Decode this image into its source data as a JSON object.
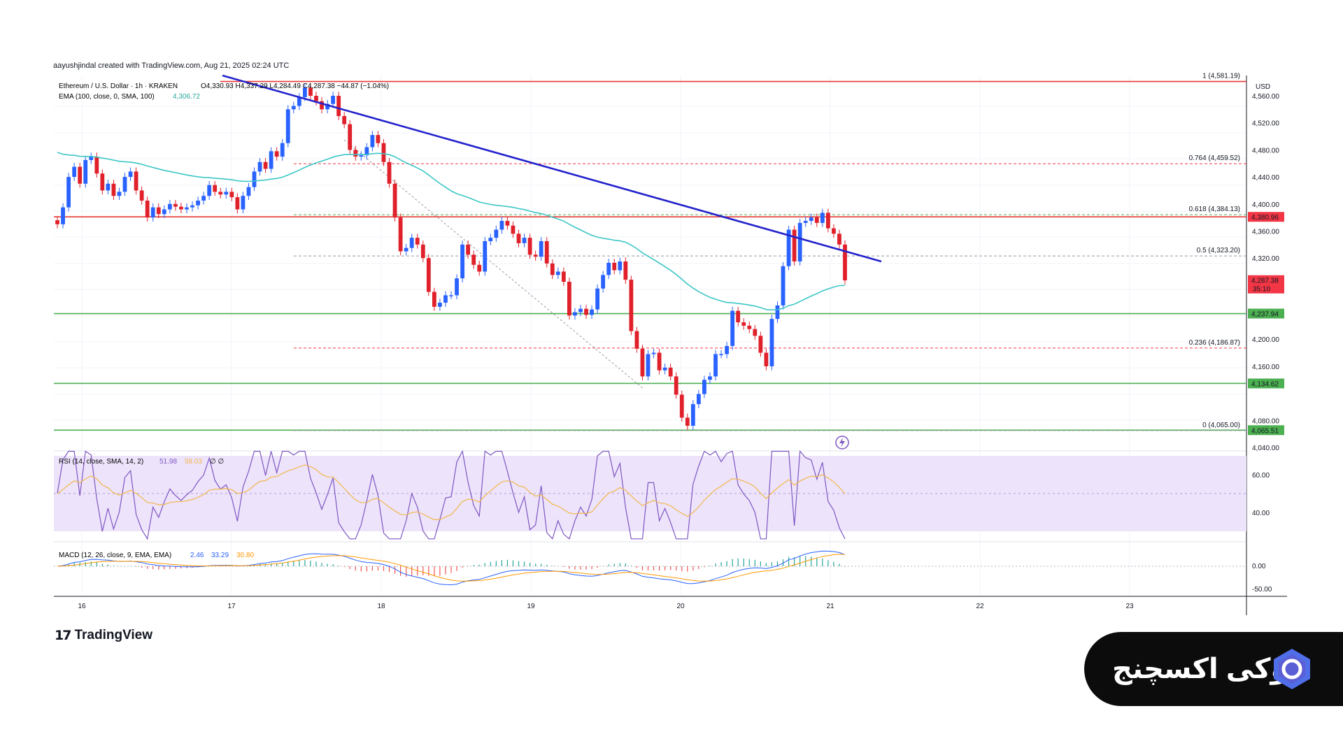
{
  "credit": "aayushjindal created with TradingView.com, Aug 21, 2025 02:24 UTC",
  "header": {
    "symbol": "Ethereum / U.S. Dollar · 1h · KRAKEN",
    "ohlc": "O4,330.93  H4,337.29  L4,284.49  C4,287.38  −44.87 (−1.04%)",
    "ema_label": "EMA (100, close, 0, SMA, 100)",
    "ema_value": "4,306.72"
  },
  "price_axis": {
    "currency": "USD",
    "ticks": [
      "4,560.00",
      "4,520.00",
      "4,480.00",
      "4,440.00",
      "4,400.00",
      "4,360.00",
      "4,320.00",
      "4,200.00",
      "4,160.00",
      "4,080.00",
      "4,040.00"
    ]
  },
  "x_axis": {
    "ticks": [
      "16",
      "17",
      "18",
      "19",
      "20",
      "21",
      "22",
      "23"
    ]
  },
  "price_labels": [
    {
      "text": "4,380.96",
      "color": "#f23645"
    },
    {
      "text": "4,287.38",
      "sub": "35:10",
      "color": "#f23645"
    },
    {
      "text": "4,237.94",
      "color": "#4caf50"
    },
    {
      "text": "4,134.62",
      "color": "#4caf50"
    },
    {
      "text": "4,065.51",
      "color": "#4caf50"
    }
  ],
  "fib_labels": [
    {
      "text": "1 (4,581.19)",
      "color": "#5b9cf6"
    },
    {
      "text": "0.764 (4,459.52)",
      "color": "#f23645"
    },
    {
      "text": "0.618 (4,384.13)",
      "color": "#4caf50"
    },
    {
      "text": "0.5 (4,323.20)",
      "color": "#131722"
    },
    {
      "text": "0.236 (4,186.87)",
      "color": "#f23645"
    },
    {
      "text": "0 (4,065.00)",
      "color": "#787b86"
    }
  ],
  "rsi": {
    "label": "RSI (14, close, SMA, 14, 2)",
    "value": "51.98",
    "value2": "58.03",
    "extra": "∅ ∅",
    "ticks": [
      "60.00",
      "40.00"
    ]
  },
  "macd": {
    "label": "MACD (12, 26, close, 9, EMA, EMA)",
    "v1": "2.46",
    "v2": "33.29",
    "v3": "30.80",
    "ticks": [
      "0.00",
      "-50.00"
    ]
  },
  "colors": {
    "up": "#2962ff",
    "down": "#e0202a",
    "ema": "#3dc6c6",
    "trend": "#2323cc",
    "resistance": "#e53935",
    "support": "#4caf50",
    "rsi_bg": "#ede3fb",
    "rsi_line": "#7e57c2"
  },
  "chart_data": {
    "type": "candlestick",
    "title": "Ethereum / U.S. Dollar · 1h · KRAKEN",
    "x_label": "",
    "y_label": "USD",
    "ylim": [
      4040,
      4590
    ],
    "series": [
      {
        "name": "Ethereum / U.S. Dollar",
        "closes": [
          4370,
          4395,
          4440,
          4455,
          4430,
          4465,
          4470,
          4445,
          4420,
          4430,
          4412,
          4418,
          4440,
          4448,
          4420,
          4405,
          4380,
          4395,
          4385,
          4392,
          4400,
          4396,
          4392,
          4395,
          4398,
          4405,
          4412,
          4428,
          4418,
          4414,
          4418,
          4410,
          4392,
          4412,
          4425,
          4448,
          4462,
          4452,
          4478,
          4470,
          4490,
          4540,
          4545,
          4558,
          4572,
          4560,
          4552,
          4540,
          4548,
          4560,
          4530,
          4518,
          4480,
          4470,
          4472,
          4484,
          4502,
          4490,
          4462,
          4430,
          4380,
          4330,
          4335,
          4350,
          4340,
          4320,
          4270,
          4248,
          4254,
          4265,
          4265,
          4290,
          4340,
          4325,
          4310,
          4300,
          4345,
          4350,
          4362,
          4375,
          4368,
          4356,
          4342,
          4350,
          4325,
          4322,
          4345,
          4312,
          4295,
          4300,
          4285,
          4235,
          4240,
          4245,
          4236,
          4244,
          4275,
          4295,
          4313,
          4302,
          4315,
          4288,
          4212,
          4186,
          4145,
          4178,
          4180,
          4154,
          4158,
          4145,
          4118,
          4084,
          4072,
          4104,
          4119,
          4140,
          4145,
          4178,
          4178,
          4190,
          4242,
          4225,
          4220,
          4215,
          4205,
          4180,
          4160,
          4230,
          4250,
          4308,
          4362,
          4315,
          4372,
          4375,
          4380,
          4372,
          4387,
          4364,
          4356,
          4340,
          4287
        ]
      }
    ],
    "ema100": "4,306.72",
    "horizontal_levels": [
      {
        "value": 4581.19,
        "role": "resistance"
      },
      {
        "value": 4380.96,
        "role": "resistance"
      },
      {
        "value": 4237.94,
        "role": "support"
      },
      {
        "value": 4134.62,
        "role": "support"
      },
      {
        "value": 4065.51,
        "role": "support"
      }
    ],
    "fib_levels": [
      {
        "ratio": "1",
        "value": 4581.19
      },
      {
        "ratio": "0.764",
        "value": 4459.52
      },
      {
        "ratio": "0.618",
        "value": 4384.13
      },
      {
        "ratio": "0.5",
        "value": 4323.2
      },
      {
        "ratio": "0.236",
        "value": 4186.87
      },
      {
        "ratio": "0",
        "value": 4065.0
      }
    ],
    "x_ticks": [
      "16",
      "17",
      "18",
      "19",
      "20",
      "21",
      "22",
      "23"
    ]
  },
  "footer": {
    "tv_logo_mark": "17",
    "tv_logo_text": "TradingView",
    "brand_text": "اوکی اکسچنج"
  }
}
